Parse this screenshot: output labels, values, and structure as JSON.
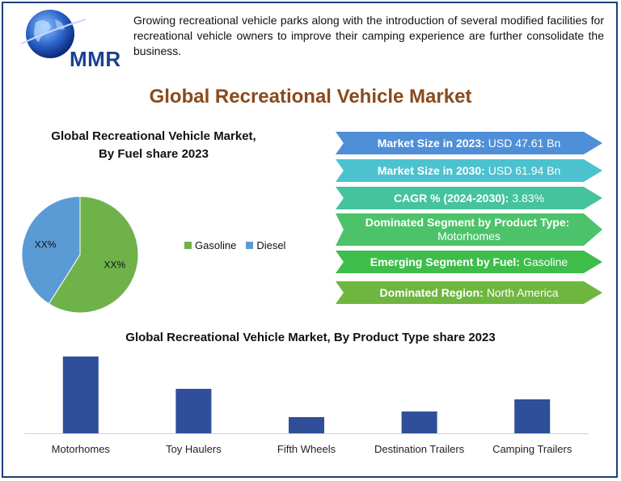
{
  "logo": {
    "text": "MMR"
  },
  "intro_text": "Growing recreational vehicle parks along with the introduction of several modified facilities for recreational vehicle owners to improve their camping experience are further consolidate the business.",
  "main_title": "Global Recreational Vehicle Market",
  "colors": {
    "title": "#8a4a1c",
    "gasoline": "#6fb24a",
    "diesel": "#5b9bd5",
    "bars": "#2f4f9a"
  },
  "stats": [
    {
      "label": "Market Size in 2023:",
      "value": "USD 47.61 Bn",
      "color": "#4f8fd8"
    },
    {
      "label": "Market Size in 2030:",
      "value": "USD 61.94 Bn",
      "color": "#4cc2cf"
    },
    {
      "label": "CAGR % (2024-2030):",
      "value": "3.83%",
      "color": "#45c39d"
    },
    {
      "label": "Dominated Segment by Product Type:",
      "value": "Motorhomes",
      "color": "#4cc36a"
    },
    {
      "label": "Emerging Segment by Fuel:",
      "value": "Gasoline",
      "color": "#3ebd4b"
    },
    {
      "label": "Dominated Region:",
      "value": "North America",
      "color": "#6fb640"
    }
  ],
  "chart_data": [
    {
      "type": "pie",
      "title_line1": "Global Recreational Vehicle Market,",
      "title_line2": "By Fuel share  2023",
      "categories": [
        "Gasoline",
        "Diesel"
      ],
      "values": [
        59,
        41
      ],
      "data_labels": [
        "XX%",
        "XX%"
      ],
      "legend": "right"
    },
    {
      "type": "bar",
      "title": "Global Recreational Vehicle Market, By  Product Type share  2023",
      "categories": [
        "Motorhomes",
        "Toy Haulers",
        "Fifth Wheels",
        "Destination Trailers",
        "Camping Trailers"
      ],
      "values": [
        95,
        55,
        20,
        27,
        42
      ],
      "ylim": [
        0,
        100
      ],
      "grid": false
    }
  ]
}
